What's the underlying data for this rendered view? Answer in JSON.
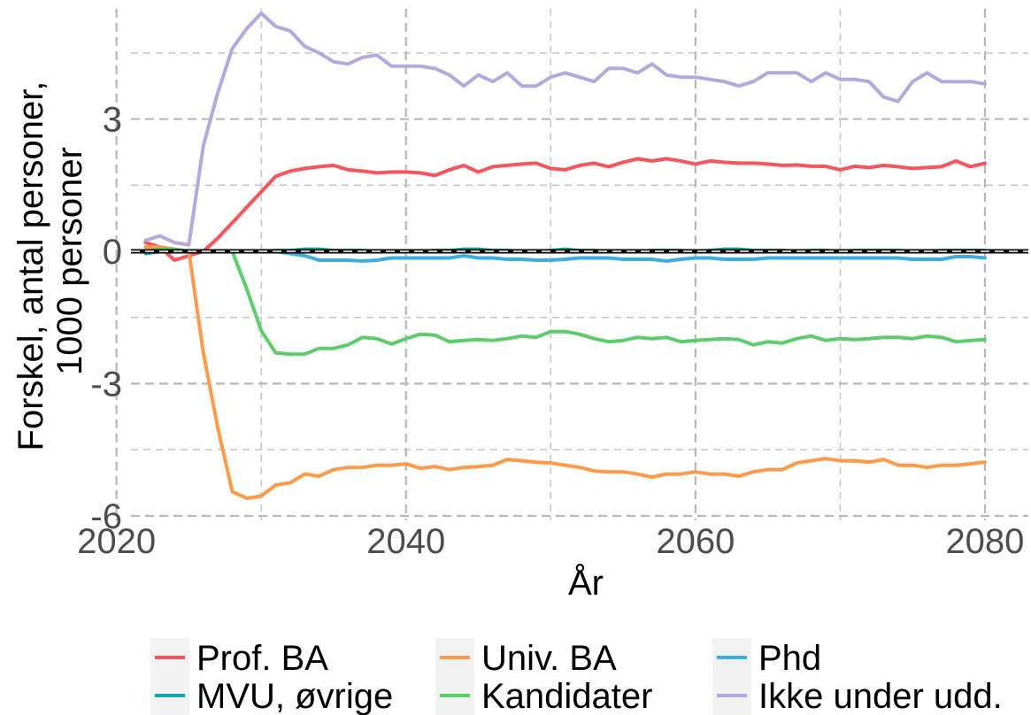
{
  "chart_data": {
    "type": "line",
    "title": "",
    "xlabel": "År",
    "ylabel_lines": [
      "Forskel, antal personer,",
      "1000 personer"
    ],
    "xlim": [
      2021,
      2083
    ],
    "ylim": [
      -6.1,
      5.5
    ],
    "x_ticks": [
      2020,
      2040,
      2060,
      2080
    ],
    "x_tick_labels": [
      "2020",
      "2040",
      "2060",
      "2080"
    ],
    "y_ticks": [
      -6,
      -3,
      0,
      3
    ],
    "y_tick_labels": [
      "-6",
      "-3",
      "0",
      "3"
    ],
    "grid": true,
    "reference_line": 0,
    "legend_position": "bottom",
    "x": [
      2022,
      2023,
      2024,
      2025,
      2026,
      2027,
      2028,
      2029,
      2030,
      2031,
      2032,
      2033,
      2034,
      2035,
      2036,
      2037,
      2038,
      2039,
      2040,
      2041,
      2042,
      2043,
      2044,
      2045,
      2046,
      2047,
      2048,
      2049,
      2050,
      2051,
      2052,
      2053,
      2054,
      2055,
      2056,
      2057,
      2058,
      2059,
      2060,
      2061,
      2062,
      2063,
      2064,
      2065,
      2066,
      2067,
      2068,
      2069,
      2070,
      2071,
      2072,
      2073,
      2074,
      2075,
      2076,
      2077,
      2078,
      2079,
      2080
    ],
    "series": [
      {
        "name": "Prof. BA",
        "color": "#f8545b",
        "values": [
          0.2,
          0.1,
          -0.2,
          -0.1,
          0.0,
          0.3,
          0.65,
          1.0,
          1.35,
          1.7,
          1.82,
          1.88,
          1.92,
          1.95,
          1.85,
          1.82,
          1.78,
          1.8,
          1.8,
          1.78,
          1.72,
          1.85,
          1.95,
          1.8,
          1.92,
          1.95,
          1.98,
          2.0,
          1.88,
          1.85,
          1.95,
          2.0,
          1.92,
          2.02,
          2.1,
          2.05,
          2.1,
          2.05,
          1.98,
          2.05,
          2.02,
          2.0,
          2.0,
          1.98,
          1.95,
          1.96,
          1.93,
          1.93,
          1.85,
          1.93,
          1.9,
          1.95,
          1.92,
          1.88,
          1.9,
          1.92,
          2.05,
          1.92,
          2.0
        ]
      },
      {
        "name": "Univ. BA",
        "color": "#ff9a48",
        "values": [
          0.1,
          0.1,
          0.05,
          0.0,
          -2.3,
          -4.0,
          -5.45,
          -5.6,
          -5.55,
          -5.3,
          -5.25,
          -5.05,
          -5.1,
          -4.95,
          -4.9,
          -4.9,
          -4.85,
          -4.85,
          -4.82,
          -4.92,
          -4.88,
          -4.95,
          -4.9,
          -4.88,
          -4.85,
          -4.72,
          -4.75,
          -4.78,
          -4.8,
          -4.85,
          -4.9,
          -4.98,
          -5.0,
          -5.0,
          -5.05,
          -5.12,
          -5.05,
          -5.05,
          -5.0,
          -5.05,
          -5.05,
          -5.1,
          -5.0,
          -4.95,
          -4.95,
          -4.8,
          -4.75,
          -4.7,
          -4.75,
          -4.75,
          -4.78,
          -4.72,
          -4.85,
          -4.85,
          -4.9,
          -4.85,
          -4.85,
          -4.82,
          -4.78
        ]
      },
      {
        "name": "Phd",
        "color": "#3aaee0",
        "values": [
          0.0,
          0.0,
          0.0,
          0.0,
          0.0,
          0.0,
          0.0,
          0.0,
          0.0,
          0.0,
          -0.05,
          -0.1,
          -0.2,
          -0.2,
          -0.2,
          -0.22,
          -0.2,
          -0.15,
          -0.15,
          -0.15,
          -0.15,
          -0.15,
          -0.1,
          -0.15,
          -0.15,
          -0.18,
          -0.18,
          -0.2,
          -0.2,
          -0.18,
          -0.15,
          -0.15,
          -0.15,
          -0.18,
          -0.18,
          -0.18,
          -0.22,
          -0.18,
          -0.15,
          -0.15,
          -0.18,
          -0.18,
          -0.18,
          -0.15,
          -0.15,
          -0.15,
          -0.15,
          -0.15,
          -0.15,
          -0.15,
          -0.15,
          -0.15,
          -0.15,
          -0.18,
          -0.18,
          -0.18,
          -0.12,
          -0.12,
          -0.15
        ]
      },
      {
        "name": "MVU, øvrige",
        "color": "#15a8a8",
        "values": [
          -0.05,
          0.0,
          0.02,
          0.0,
          0.0,
          0.0,
          0.0,
          0.0,
          0.0,
          0.02,
          0.02,
          0.05,
          0.05,
          0.02,
          0.02,
          0.02,
          0.0,
          0.0,
          0.0,
          0.0,
          0.02,
          0.02,
          0.05,
          0.05,
          0.02,
          0.02,
          0.0,
          0.0,
          0.02,
          0.05,
          0.02,
          0.02,
          0.0,
          0.0,
          0.0,
          0.02,
          0.02,
          0.02,
          0.0,
          0.02,
          0.05,
          0.05,
          0.02,
          0.02,
          0.02,
          0.0,
          0.02,
          0.02,
          0.0,
          0.02,
          0.02,
          0.02,
          0.02,
          0.0,
          0.0,
          0.02,
          0.02,
          0.02,
          0.02
        ]
      },
      {
        "name": "Kandidater",
        "color": "#5ccd6a",
        "values": [
          0.0,
          0.05,
          0.05,
          0.0,
          0.0,
          0.0,
          0.0,
          -0.85,
          -1.8,
          -2.3,
          -2.33,
          -2.33,
          -2.2,
          -2.2,
          -2.12,
          -1.95,
          -1.98,
          -2.1,
          -1.98,
          -1.88,
          -1.9,
          -2.05,
          -2.02,
          -2.0,
          -2.02,
          -1.98,
          -1.92,
          -1.95,
          -1.82,
          -1.82,
          -1.88,
          -1.98,
          -2.05,
          -2.02,
          -1.95,
          -1.98,
          -1.95,
          -2.05,
          -2.02,
          -2.0,
          -1.98,
          -2.0,
          -2.12,
          -2.05,
          -2.08,
          -1.98,
          -1.92,
          -2.02,
          -1.98,
          -2.0,
          -1.98,
          -1.95,
          -1.95,
          -1.98,
          -1.92,
          -1.95,
          -2.05,
          -2.02,
          -2.0
        ]
      },
      {
        "name": "Ikke under udd.",
        "color": "#b6a8dd",
        "values": [
          0.25,
          0.35,
          0.2,
          0.15,
          2.4,
          3.6,
          4.6,
          5.05,
          5.4,
          5.1,
          5.0,
          4.65,
          4.5,
          4.3,
          4.25,
          4.4,
          4.45,
          4.2,
          4.2,
          4.2,
          4.15,
          4.0,
          3.75,
          4.0,
          3.85,
          4.05,
          3.75,
          3.75,
          3.95,
          4.05,
          3.95,
          3.85,
          4.15,
          4.15,
          4.05,
          4.25,
          4.0,
          3.95,
          3.95,
          3.9,
          3.85,
          3.75,
          3.85,
          4.05,
          4.05,
          4.05,
          3.85,
          4.05,
          3.9,
          3.9,
          3.85,
          3.5,
          3.4,
          3.85,
          4.05,
          3.85,
          3.85,
          3.85,
          3.8
        ]
      }
    ],
    "legend_rows": [
      [
        "Prof. BA",
        "Univ. BA",
        "Phd"
      ],
      [
        "MVU, øvrige",
        "Kandidater",
        "Ikke under udd."
      ]
    ]
  }
}
